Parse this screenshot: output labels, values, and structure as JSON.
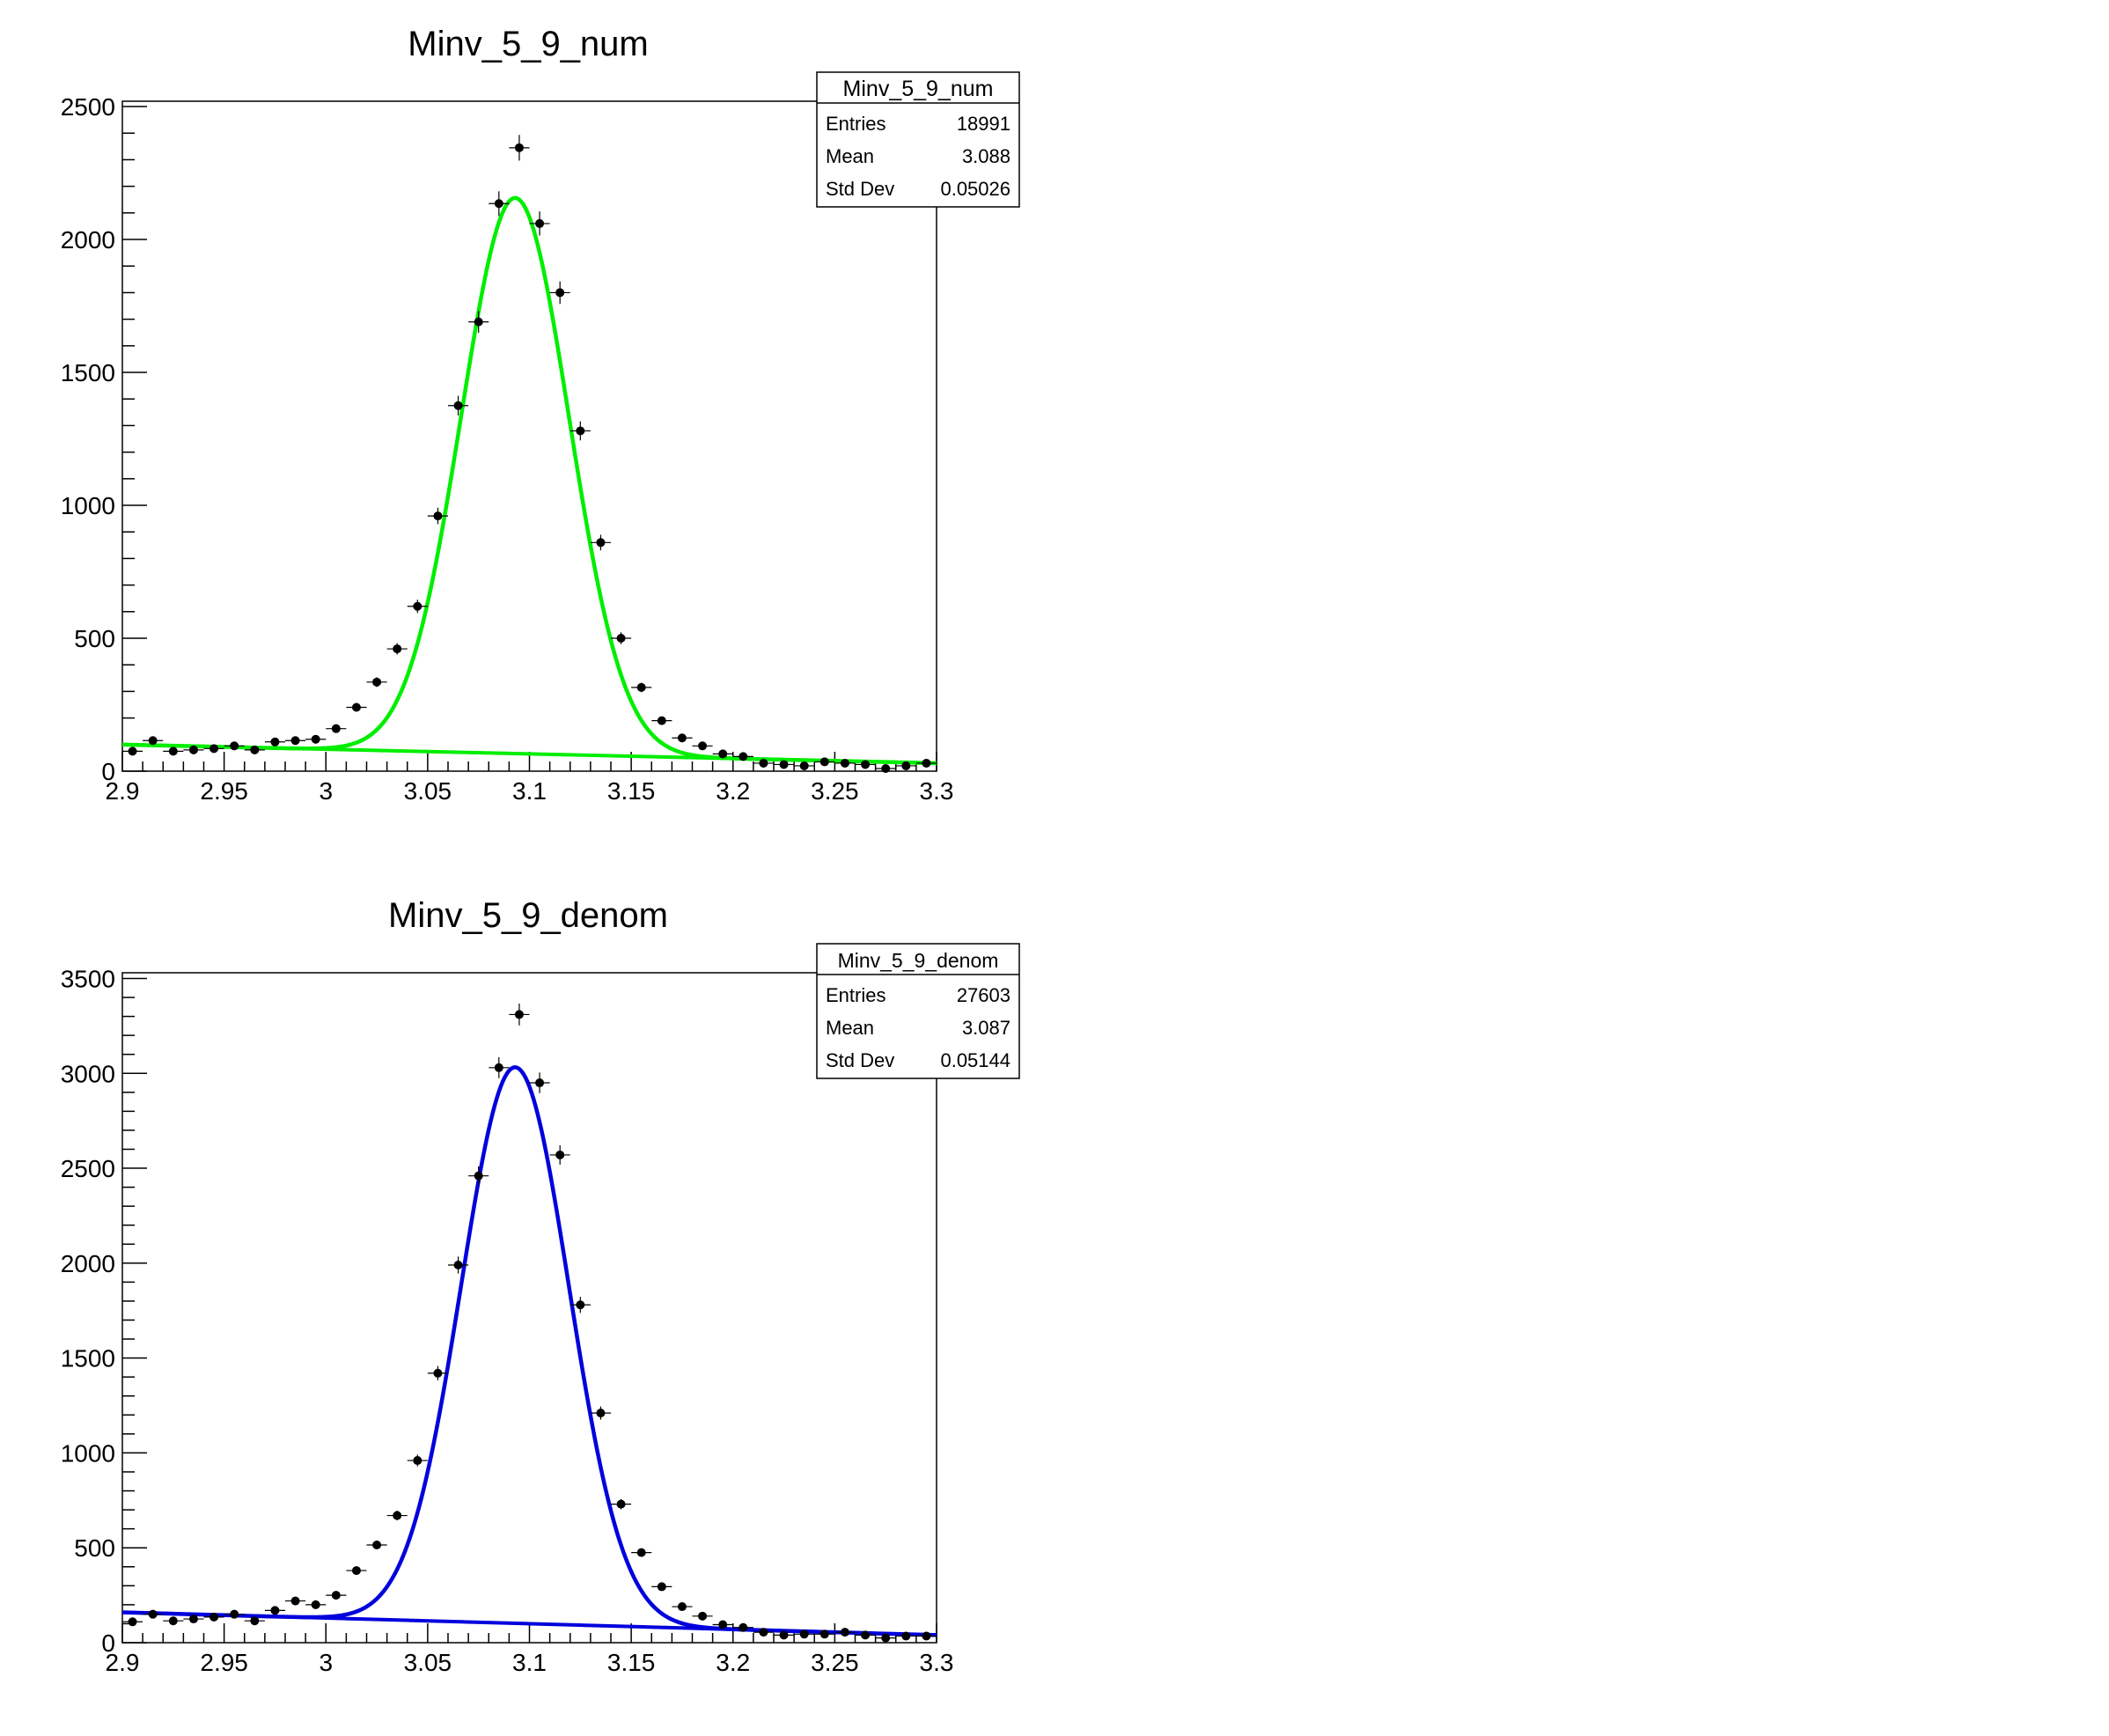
{
  "chart_data": [
    {
      "type": "scatter",
      "title": "Minv_5_9_num",
      "fit_color": "#00ee00",
      "xlim": [
        2.9,
        3.3
      ],
      "ylim": [
        0,
        2520
      ],
      "x_ticks": [
        "2.9",
        "2.95",
        "3",
        "3.05",
        "3.1",
        "3.15",
        "3.2",
        "3.25",
        "3.3"
      ],
      "y_ticks": [
        "0",
        "500",
        "1000",
        "1500",
        "2000",
        "2500"
      ],
      "stats": {
        "name": "Minv_5_9_num",
        "rows": [
          {
            "label": "Entries",
            "value": "18991"
          },
          {
            "label": "Mean",
            "value": "3.088"
          },
          {
            "label": "Std Dev",
            "value": "0.05026"
          }
        ]
      },
      "x": [
        2.905,
        2.915,
        2.925,
        2.935,
        2.945,
        2.955,
        2.965,
        2.975,
        2.985,
        2.995,
        3.005,
        3.015,
        3.025,
        3.035,
        3.045,
        3.055,
        3.065,
        3.075,
        3.085,
        3.095,
        3.105,
        3.115,
        3.125,
        3.135,
        3.145,
        3.155,
        3.165,
        3.175,
        3.185,
        3.195,
        3.205,
        3.215,
        3.225,
        3.235,
        3.245,
        3.255,
        3.265,
        3.275,
        3.285,
        3.295
      ],
      "y": [
        75,
        115,
        75,
        80,
        85,
        95,
        80,
        110,
        115,
        120,
        160,
        240,
        335,
        460,
        620,
        960,
        1375,
        1690,
        2135,
        2345,
        2060,
        1800,
        1280,
        860,
        500,
        315,
        190,
        125,
        95,
        65,
        55,
        30,
        25,
        20,
        35,
        30,
        25,
        10,
        20,
        30
      ],
      "fit": {
        "amplitude": 2090,
        "mean": 3.093,
        "sigma": 0.0265,
        "bkg_left": 100,
        "bkg_right": 30
      }
    },
    {
      "type": "scatter",
      "title": "Minv_5_9_denom",
      "fit_color": "#0000dd",
      "xlim": [
        2.9,
        3.3
      ],
      "ylim": [
        0,
        3530
      ],
      "x_ticks": [
        "2.9",
        "2.95",
        "3",
        "3.05",
        "3.1",
        "3.15",
        "3.2",
        "3.25",
        "3.3"
      ],
      "y_ticks": [
        "0",
        "500",
        "1000",
        "1500",
        "2000",
        "2500",
        "3000",
        "3500"
      ],
      "stats": {
        "name": "Minv_5_9_denom",
        "rows": [
          {
            "label": "Entries",
            "value": "27603"
          },
          {
            "label": "Mean",
            "value": "3.087"
          },
          {
            "label": "Std Dev",
            "value": "0.05144"
          }
        ]
      },
      "x": [
        2.905,
        2.915,
        2.925,
        2.935,
        2.945,
        2.955,
        2.965,
        2.975,
        2.985,
        2.995,
        3.005,
        3.015,
        3.025,
        3.035,
        3.045,
        3.055,
        3.065,
        3.075,
        3.085,
        3.095,
        3.105,
        3.115,
        3.125,
        3.135,
        3.145,
        3.155,
        3.165,
        3.175,
        3.185,
        3.195,
        3.205,
        3.215,
        3.225,
        3.235,
        3.245,
        3.255,
        3.265,
        3.275,
        3.285,
        3.295
      ],
      "y": [
        110,
        150,
        115,
        125,
        135,
        150,
        115,
        170,
        220,
        200,
        250,
        380,
        515,
        670,
        960,
        1420,
        1990,
        2460,
        3030,
        3310,
        2950,
        2570,
        1780,
        1210,
        730,
        475,
        295,
        190,
        140,
        95,
        80,
        55,
        40,
        45,
        45,
        55,
        40,
        25,
        35,
        35
      ],
      "fit": {
        "amplitude": 2930,
        "mean": 3.093,
        "sigma": 0.0265,
        "bkg_left": 160,
        "bkg_right": 40
      }
    }
  ]
}
